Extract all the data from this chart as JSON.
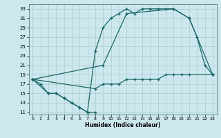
{
  "xlabel": "Humidex (Indice chaleur)",
  "bg_color": "#cce8ee",
  "grid_color": "#aacccc",
  "line_color": "#1a6666",
  "xlim_min": -0.5,
  "xlim_max": 23.5,
  "ylim_min": 10.5,
  "ylim_max": 34,
  "xticks": [
    0,
    1,
    2,
    3,
    4,
    5,
    6,
    7,
    8,
    9,
    10,
    11,
    12,
    13,
    14,
    15,
    16,
    17,
    18,
    19,
    20,
    21,
    22,
    23
  ],
  "yticks": [
    11,
    13,
    15,
    17,
    19,
    21,
    23,
    25,
    27,
    29,
    31,
    33
  ],
  "series1_x": [
    0,
    1,
    2,
    3,
    4,
    5,
    6,
    7,
    8
  ],
  "series1_y": [
    18,
    17,
    15,
    15,
    14,
    13,
    12,
    11,
    11
  ],
  "series2_x": [
    0,
    2,
    3,
    4,
    5,
    6,
    7,
    8,
    9,
    10,
    11,
    12,
    13,
    14,
    15,
    16,
    17,
    18,
    20,
    21,
    22,
    23
  ],
  "series2_y": [
    18,
    15,
    15,
    14,
    13,
    12,
    11,
    24,
    29,
    31,
    32,
    33,
    32,
    33,
    33,
    33,
    33,
    33,
    31,
    27,
    21,
    19
  ],
  "series3_x": [
    0,
    9,
    12,
    18,
    20,
    23
  ],
  "series3_y": [
    18,
    21,
    32,
    33,
    31,
    19
  ],
  "series4_x": [
    0,
    8,
    9,
    10,
    11,
    12,
    13,
    14,
    15,
    16,
    17,
    18,
    19,
    20,
    23
  ],
  "series4_y": [
    18,
    16,
    17,
    17,
    17,
    18,
    18,
    18,
    18,
    18,
    19,
    19,
    19,
    19,
    19
  ]
}
